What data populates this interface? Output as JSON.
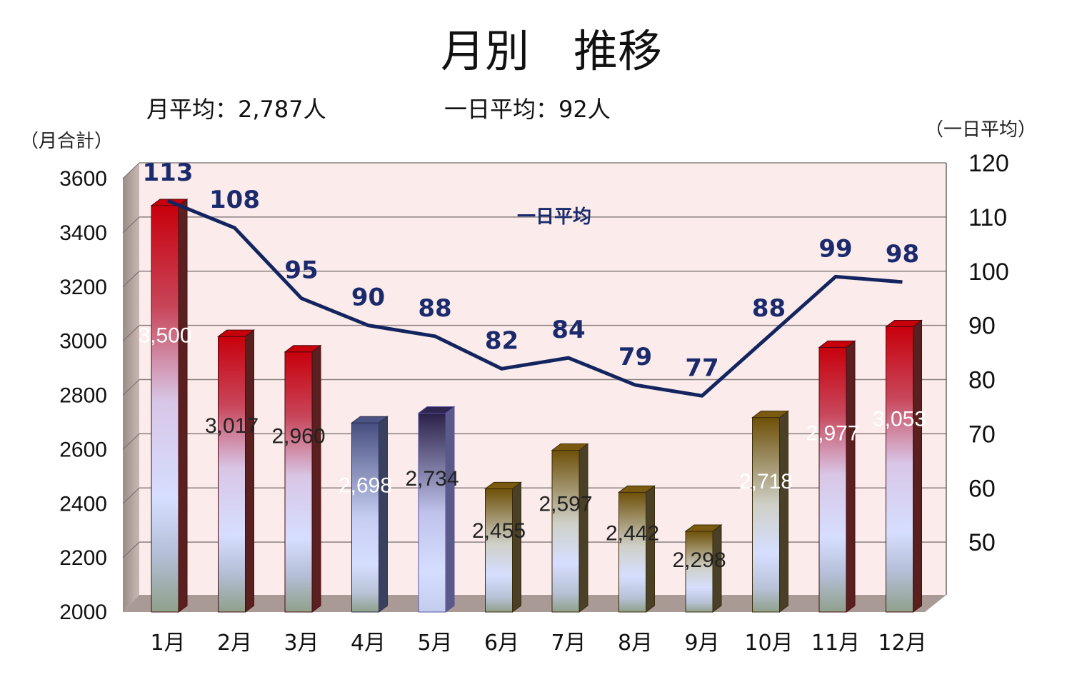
{
  "header": {
    "title": "月別　推移",
    "summary_monthly": "月平均：2,787人",
    "summary_daily": "一日平均：92人"
  },
  "axes": {
    "left_unit": "（月合計）",
    "right_unit": "（一日平均）"
  },
  "colors": {
    "plot_background": "#fbeceb",
    "line": "#13245e",
    "red_top": "#c8000c",
    "olive_top": "#7a5a10",
    "navy_top": "#4b5483",
    "purple_top": "#2e2550",
    "bar_light": "#d6deff",
    "bar_bottom": "#8fa08a"
  },
  "chart_data": {
    "type": "bar",
    "categories": [
      "1月",
      "2月",
      "3月",
      "4月",
      "5月",
      "6月",
      "7月",
      "8月",
      "9月",
      "10月",
      "11月",
      "12月"
    ],
    "series": [
      {
        "values": [
          3500,
          3017,
          2960,
          2698,
          2734,
          2455,
          2597,
          2442,
          2298,
          2718,
          2977,
          3053
        ],
        "labels": [
          "3,500",
          "3,017",
          "2,960",
          "2,698",
          "2,734",
          "2,455",
          "2,597",
          "2,442",
          "2,298",
          "2,718",
          "2,977",
          "3,053"
        ],
        "bar_styles": [
          "red",
          "red",
          "red",
          "navy",
          "purple",
          "olive",
          "olive",
          "olive",
          "olive",
          "olive",
          "red",
          "red"
        ],
        "label_colors": [
          "#ffffff",
          "#222222",
          "#222222",
          "#ffffff",
          "#222222",
          "#222222",
          "#222222",
          "#222222",
          "#222222",
          "#ffffff",
          "#ffffff",
          "#ffffff"
        ]
      },
      {
        "name": "一日平均",
        "type": "line",
        "axis": "right",
        "values": [
          113,
          108,
          95,
          90,
          88,
          82,
          84,
          79,
          77,
          88,
          99,
          98
        ]
      }
    ],
    "ylim": [
      2000,
      3600
    ],
    "yticks": [
      2000,
      2200,
      2400,
      2600,
      2800,
      3000,
      3200,
      3400,
      3600
    ],
    "y2lim": [
      40,
      120
    ],
    "y2ticks": [
      50,
      60,
      70,
      80,
      90,
      100,
      110,
      120
    ],
    "grid": true,
    "legend": "none"
  }
}
